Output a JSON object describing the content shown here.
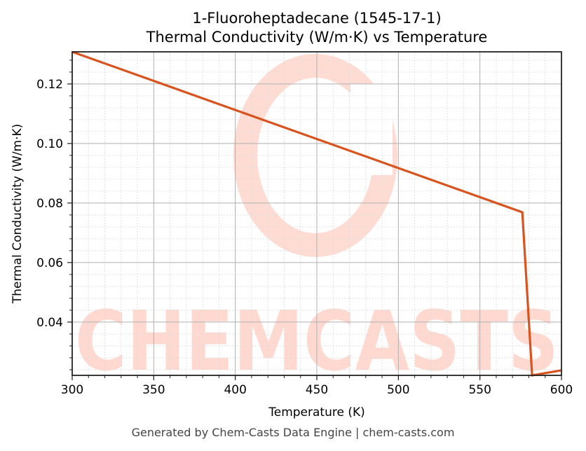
{
  "chart_data": {
    "type": "line",
    "title": "1-Fluoroheptadecane (1545-17-1)",
    "subtitle": "Thermal Conductivity (W/m·K) vs Temperature",
    "xlabel": "Temperature (K)",
    "ylabel": "Thermal Conductivity (W/m·K)",
    "xlim": [
      300,
      600
    ],
    "ylim": [
      0.0221,
      0.1308
    ],
    "xticks": [
      300,
      350,
      400,
      450,
      500,
      550,
      600
    ],
    "xtick_labels": [
      "300",
      "350",
      "400",
      "450",
      "500",
      "550",
      "600"
    ],
    "yticks": [
      0.04,
      0.06,
      0.08,
      0.1,
      0.12
    ],
    "ytick_labels": [
      "0.04",
      "0.06",
      "0.08",
      "0.10",
      "0.12"
    ],
    "grid": true,
    "minor_grid": true,
    "legend": null,
    "series": [
      {
        "name": "Thermal Conductivity",
        "color": "#d9531e",
        "x": [
          300,
          576,
          582,
          600
        ],
        "y": [
          0.1308,
          0.0769,
          0.0221,
          0.0238
        ]
      }
    ],
    "watermark": "CHEMCASTS"
  },
  "footer": "Generated by Chem-Casts Data Engine | chem-casts.com"
}
